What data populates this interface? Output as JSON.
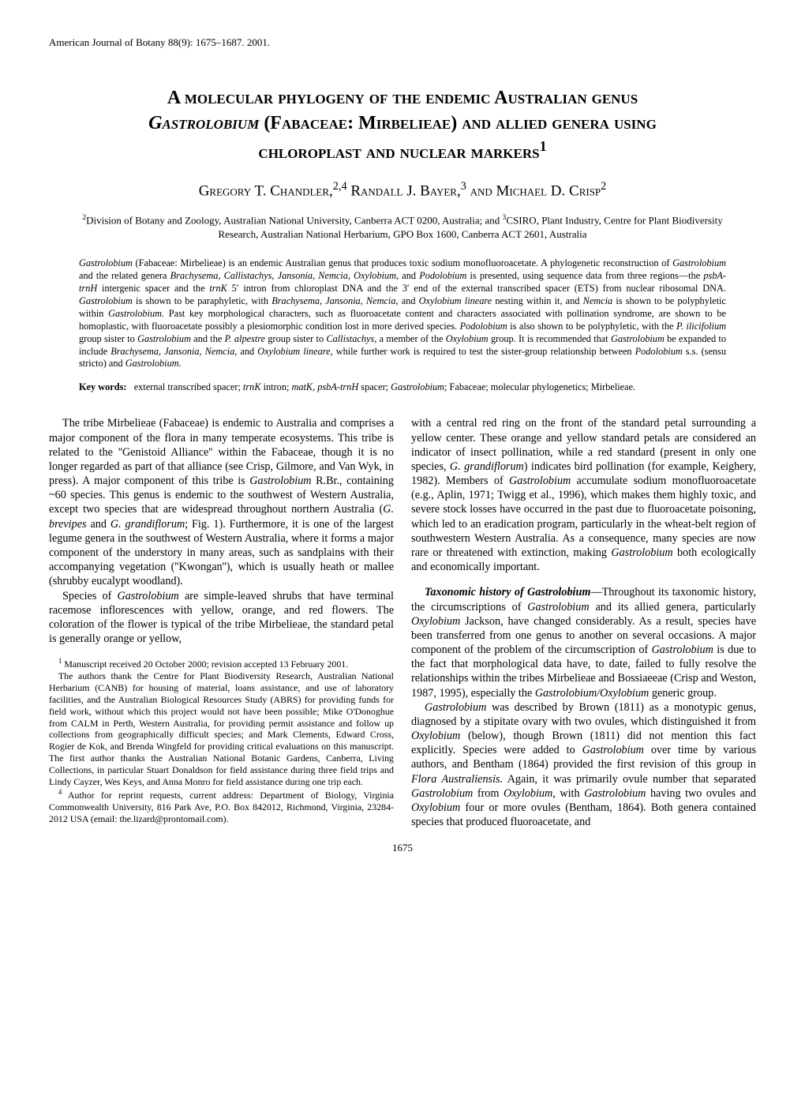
{
  "header": "American Journal of Botany 88(9): 1675–1687. 2001.",
  "title_html": "A molecular phylogeny of the endemic Australian genus <span class='italic'>Gastrolobium</span> (Fabaceae: Mirbelieae) and allied genera using chloroplast and nuclear markers<sup>1</sup>",
  "authors_html": "Gregory T. Chandler,<sup>2,4</sup> Randall J. Bayer,<sup>3</sup> and Michael D. Crisp<sup>2</sup>",
  "affiliations_html": "<sup>2</sup>Division of Botany and Zoology, Australian National University, Canberra ACT 0200, Australia; and <sup>3</sup>CSIRO, Plant Industry, Centre for Plant Biodiversity Research, Australian National Herbarium, GPO Box 1600, Canberra ACT 2601, Australia",
  "abstract_html": "<span class='italic'>Gastrolobium</span> (Fabaceae: Mirbelieae) is an endemic Australian genus that produces toxic sodium monofluoroacetate. A phylogenetic reconstruction of <span class='italic'>Gastrolobium</span> and the related genera <span class='italic'>Brachysema, Callistachys, Jansonia, Nemcia, Oxylobium,</span> and <span class='italic'>Podolobium</span> is presented, using sequence data from three regions—the <span class='italic'>psbA-trnH</span> intergenic spacer and the <span class='italic'>trnK</span> 5′ intron from chloroplast DNA and the 3′ end of the external transcribed spacer (ETS) from nuclear ribosomal DNA. <span class='italic'>Gastrolobium</span> is shown to be paraphyletic, with <span class='italic'>Brachysema, Jansonia, Nemcia,</span> and <span class='italic'>Oxylobium lineare</span> nesting within it, and <span class='italic'>Nemcia</span> is shown to be polyphyletic within <span class='italic'>Gastrolobium.</span> Past key morphological characters, such as fluoroacetate content and characters associated with pollination syndrome, are shown to be homoplastic, with fluoroacetate possibly a plesiomorphic condition lost in more derived species. <span class='italic'>Podolobium</span> is also shown to be polyphyletic, with the <span class='italic'>P. ilicifolium</span> group sister to <span class='italic'>Gastrolobium</span> and the <span class='italic'>P. alpestre</span> group sister to <span class='italic'>Callistachys,</span> a member of the <span class='italic'>Oxylobium</span> group. It is recommended that <span class='italic'>Gastrolobium</span> be expanded to include <span class='italic'>Brachysema, Jansonia, Nemcia,</span> and <span class='italic'>Oxylobium lineare,</span> while further work is required to test the sister-group relationship between <span class='italic'>Podolobium</span> s.s. (sensu stricto) and <span class='italic'>Gastrolobium.</span>",
  "keywords_label": "Key words:",
  "keywords_html": "external transcribed spacer; <span class='italic'>trnK</span> intron; <span class='italic'>matK, psbA-trnH</span> spacer; <span class='italic'>Gastrolobium</span>; Fabaceae; molecular phylogenetics; Mirbelieae.",
  "body": {
    "p1": "The tribe Mirbelieae (Fabaceae) is endemic to Australia and comprises a major component of the flora in many temperate ecosystems. This tribe is related to the ''Genistoid Alliance'' within the Fabaceae, though it is no longer regarded as part of that alliance (see Crisp, Gilmore, and Van Wyk, in press). A major component of this tribe is <span class='italic'>Gastrolobium</span> R.Br., containing ~60 species. This genus is endemic to the southwest of Western Australia, except two species that are widespread throughout northern Australia (<span class='italic'>G. brevipes</span> and <span class='italic'>G. grandiflorum</span>; Fig. 1). Furthermore, it is one of the largest legume genera in the southwest of Western Australia, where it forms a major component of the understory in many areas, such as sandplains with their accompanying vegetation (''Kwongan''), which is usually heath or mallee (shrubby eucalypt woodland).",
    "p2": "Species of <span class='italic'>Gastrolobium</span> are simple-leaved shrubs that have terminal racemose inflorescences with yellow, orange, and red flowers. The coloration of the flower is typical of the tribe Mirbelieae, the standard petal is generally orange or yellow,",
    "p3": "with a central red ring on the front of the standard petal surrounding a yellow center. These orange and yellow standard petals are considered an indicator of insect pollination, while a red standard (present in only one species, <span class='italic'>G. grandiflorum</span>) indicates bird pollination (for example, Keighery, 1982). Members of <span class='italic'>Gastrolobium</span> accumulate sodium monofluoroacetate (e.g., Aplin, 1971; Twigg et al., 1996), which makes them highly toxic, and severe stock losses have occurred in the past due to fluoroacetate poisoning, which led to an eradication program, particularly in the wheat-belt region of southwestern Western Australia. As a consequence, many species are now rare or threatened with extinction, making <span class='italic'>Gastrolobium</span> both ecologically and economically important.",
    "p4": "<span class='italic'><b>Taxonomic history of Gastrolobium</b></span>—Throughout its taxonomic history, the circumscriptions of <span class='italic'>Gastrolobium</span> and its allied genera, particularly <span class='italic'>Oxylobium</span> Jackson, have changed considerably. As a result, species have been transferred from one genus to another on several occasions. A major component of the problem of the circumscription of <span class='italic'>Gastrolobium</span> is due to the fact that morphological data have, to date, failed to fully resolve the relationships within the tribes Mirbelieae and Bossiaeeae (Crisp and Weston, 1987, 1995), especially the <span class='italic'>Gastrolobium/Oxylobium</span> generic group.",
    "p5": "<span class='italic'>Gastrolobium</span> was described by Brown (1811) as a monotypic genus, diagnosed by a stipitate ovary with two ovules, which distinguished it from <span class='italic'>Oxylobium</span> (below), though Brown (1811) did not mention this fact explicitly. Species were added to <span class='italic'>Gastrolobium</span> over time by various authors, and Bentham (1864) provided the first revision of this group in <span class='italic'>Flora Australiensis.</span> Again, it was primarily ovule number that separated <span class='italic'>Gastrolobium</span> from <span class='italic'>Oxylobium,</span> with <span class='italic'>Gastrolobium</span> having two ovules and <span class='italic'>Oxylobium</span> four or more ovules (Bentham, 1864). Both genera contained species that produced fluoroacetate, and"
  },
  "footnotes": {
    "f1": "<sup>1</sup> Manuscript received 20 October 2000; revision accepted 13 February 2001.",
    "f2": "The authors thank the Centre for Plant Biodiversity Research, Australian National Herbarium (CANB) for housing of material, loans assistance, and use of laboratory facilities, and the Australian Biological Resources Study (ABRS) for providing funds for field work, without which this project would not have been possible; Mike O'Donoghue from CALM in Perth, Western Australia, for providing permit assistance and follow up collections from geographically difficult species; and Mark Clements, Edward Cross, Rogier de Kok, and Brenda Wingfeld for providing critical evaluations on this manuscript. The first author thanks the Australian National Botanic Gardens, Canberra, Living Collections, in particular Stuart Donaldson for field assistance during three field trips and Lindy Cayzer, Wes Keys, and Anna Monro for field assistance during one trip each.",
    "f3": "<sup>4</sup> Author for reprint requests, current address: Department of Biology, Virginia Commonwealth University, 816 Park Ave, P.O. Box 842012, Richmond, Virginia, 23284-2012 USA (email: the.lizard@prontomail.com)."
  },
  "page_number": "1675"
}
